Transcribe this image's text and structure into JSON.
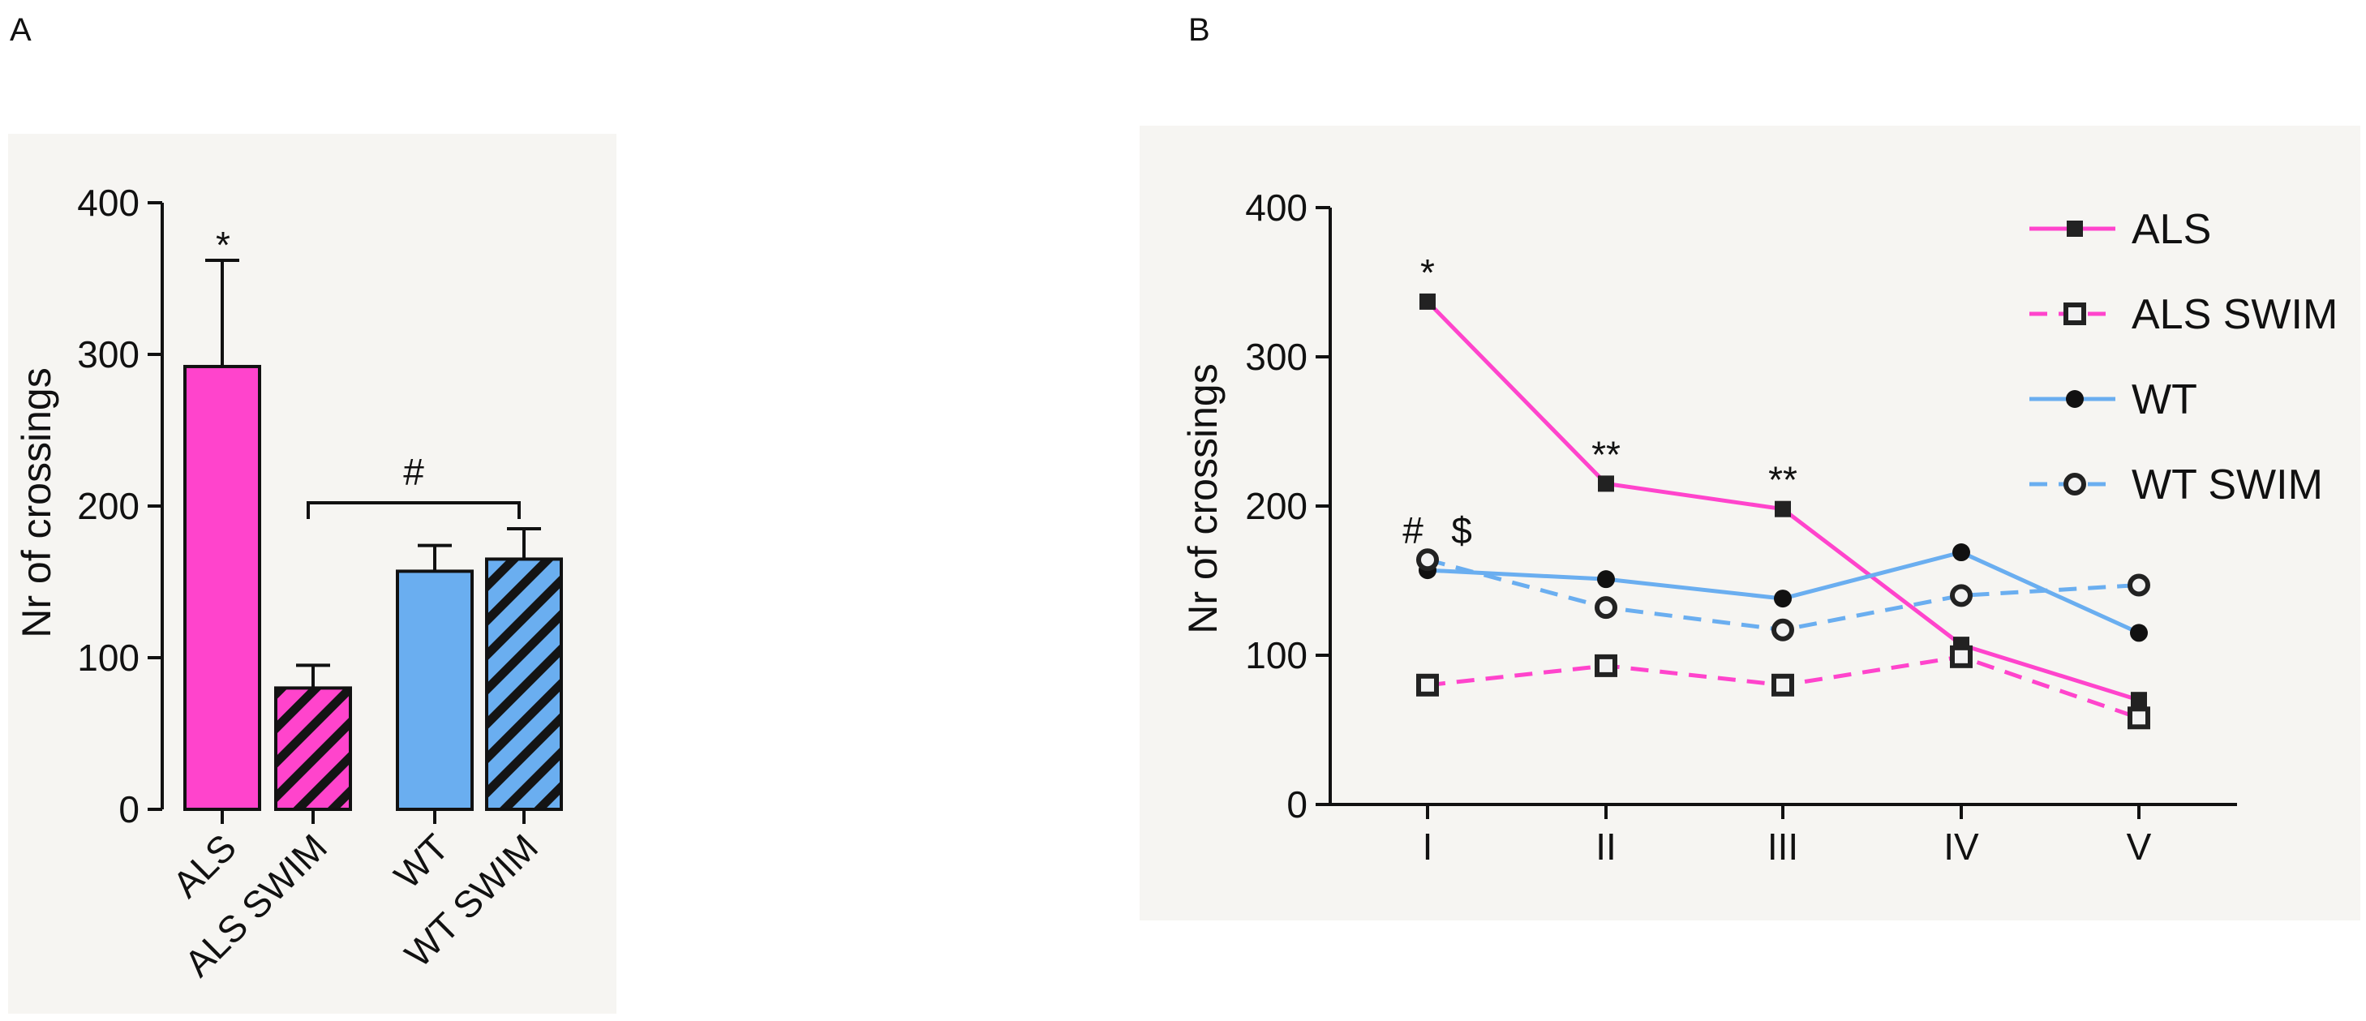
{
  "panels": {
    "a_label": "A",
    "b_label": "B"
  },
  "colors": {
    "als": "#ff44cc",
    "wt": "#6aaef0",
    "axis": "#111111",
    "background": "#f6f5f2"
  },
  "chart_data": [
    {
      "type": "bar",
      "panel": "A",
      "categories": [
        "ALS",
        "ALS SWIM",
        "WT",
        "WT SWIM"
      ],
      "values": [
        292,
        80,
        157,
        165
      ],
      "errors": [
        70,
        15,
        17,
        20
      ],
      "hatched": [
        false,
        true,
        false,
        true
      ],
      "series_color": [
        "als",
        "als",
        "wt",
        "wt"
      ],
      "ylabel": "Nr of crossings",
      "xlabel": "",
      "ylim": [
        0,
        400
      ],
      "yticks": [
        "0",
        "100",
        "200",
        "300",
        "400"
      ],
      "annotations": {
        "star": "*",
        "bracket": "#"
      }
    },
    {
      "type": "line",
      "panel": "B",
      "x": [
        "I",
        "II",
        "III",
        "IV",
        "V"
      ],
      "series": [
        {
          "name": "ALS",
          "values": [
            337,
            215,
            198,
            107,
            70
          ],
          "color": "als",
          "dashed": false,
          "marker": "square-filled"
        },
        {
          "name": "ALS SWIM",
          "values": [
            80,
            93,
            80,
            99,
            58
          ],
          "color": "als",
          "dashed": true,
          "marker": "square-open"
        },
        {
          "name": "WT",
          "values": [
            157,
            151,
            138,
            169,
            115
          ],
          "color": "wt",
          "dashed": false,
          "marker": "circle-filled"
        },
        {
          "name": "WT SWIM",
          "values": [
            164,
            132,
            117,
            140,
            147
          ],
          "color": "wt",
          "dashed": true,
          "marker": "circle-open"
        }
      ],
      "ylabel": "Nr of crossings",
      "xlabel": "",
      "ylim": [
        0,
        400
      ],
      "yticks": [
        "0",
        "100",
        "200",
        "300",
        "400"
      ],
      "annotations": [
        {
          "text": "*",
          "x_index": 0,
          "above_value": 337
        },
        {
          "text": "**",
          "x_index": 1,
          "above_value": 215
        },
        {
          "text": "**",
          "x_index": 2,
          "above_value": 198
        },
        {
          "text": "#",
          "x_index": 0,
          "above_value": 164
        },
        {
          "text": "$",
          "x_index": 0,
          "above_value": 164
        }
      ]
    }
  ]
}
